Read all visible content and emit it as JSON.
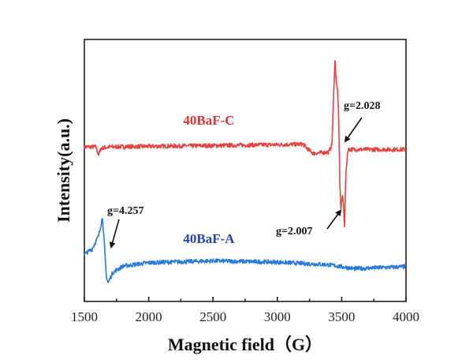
{
  "chart_data": {
    "type": "line",
    "title": "",
    "xlabel": "Magnetic field（G）",
    "ylabel": "Intensity(a.u.)",
    "xlim": [
      1500,
      4000
    ],
    "ylim": [
      0,
      100
    ],
    "xticks": [
      1500,
      2000,
      2500,
      3000,
      3500,
      4000
    ],
    "xtick_labels": [
      "1500",
      "2000",
      "2500",
      "3000",
      "3500",
      "4000"
    ],
    "grid": false,
    "series": [
      {
        "name": "40BaF-C",
        "color": "#e8413f",
        "label_color": "#e03434",
        "points": [
          [
            1500,
            59
          ],
          [
            1590,
            59
          ],
          [
            1610,
            56
          ],
          [
            1630,
            58.5
          ],
          [
            1700,
            59
          ],
          [
            2500,
            59.5
          ],
          [
            3200,
            60
          ],
          [
            3240,
            58
          ],
          [
            3280,
            56.5
          ],
          [
            3400,
            57
          ],
          [
            3425,
            60
          ],
          [
            3438,
            80
          ],
          [
            3448,
            93
          ],
          [
            3458,
            84
          ],
          [
            3468,
            80
          ],
          [
            3476,
            72
          ],
          [
            3486,
            45
          ],
          [
            3494,
            35
          ],
          [
            3504,
            40
          ],
          [
            3512,
            39
          ],
          [
            3522,
            29
          ],
          [
            3532,
            48
          ],
          [
            3548,
            58
          ],
          [
            3600,
            58
          ],
          [
            4000,
            58
          ]
        ]
      },
      {
        "name": "40BaF-A",
        "color": "#2a7ad6",
        "label_color": "#2540b8",
        "points": [
          [
            1500,
            18
          ],
          [
            1560,
            20
          ],
          [
            1610,
            25
          ],
          [
            1641,
            32
          ],
          [
            1655,
            22
          ],
          [
            1670,
            10
          ],
          [
            1684,
            7
          ],
          [
            1720,
            11
          ],
          [
            1800,
            13.5
          ],
          [
            2000,
            14.8
          ],
          [
            2500,
            15.5
          ],
          [
            3000,
            15
          ],
          [
            3400,
            14
          ],
          [
            3600,
            12.5
          ],
          [
            4000,
            13.3
          ]
        ]
      }
    ],
    "annotations": [
      {
        "text": "g=4.257",
        "x": 1680,
        "y": 9
      },
      {
        "text": "g=2.028",
        "x": 3490,
        "y": 60
      },
      {
        "text": "g=2.007",
        "x": 3520,
        "y": 36
      }
    ]
  }
}
